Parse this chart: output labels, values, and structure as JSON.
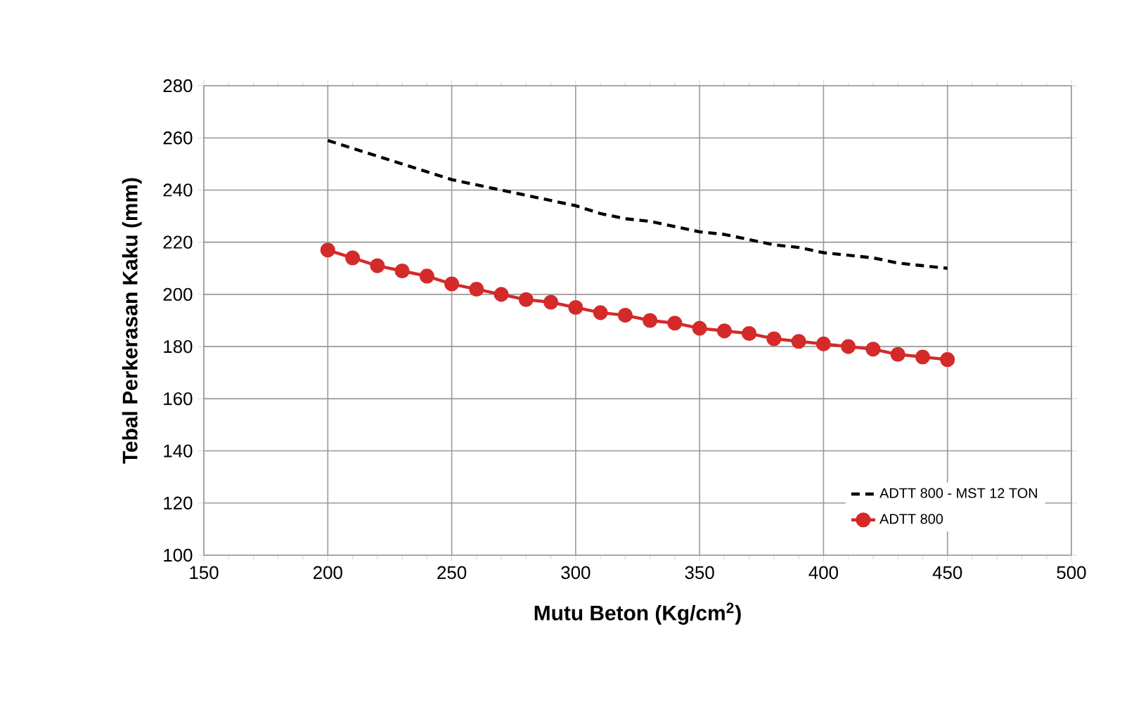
{
  "chart_data": {
    "type": "line",
    "xlabel": "Mutu Beton (Kg/cm$^{2}$)",
    "ylabel": "Tebal Perkerasan Kaku (mm)",
    "xlim": [
      150,
      500
    ],
    "xticks": [
      150,
      200,
      250,
      300,
      350,
      400,
      450,
      500
    ],
    "ylim": [
      100,
      280
    ],
    "yticks": [
      100,
      120,
      140,
      160,
      180,
      200,
      220,
      240,
      260,
      280
    ],
    "grid": true,
    "legend": "bottom right",
    "x": [
      200,
      210,
      220,
      230,
      240,
      250,
      260,
      270,
      280,
      290,
      300,
      310,
      320,
      330,
      340,
      350,
      360,
      370,
      380,
      390,
      400,
      410,
      420,
      430,
      440,
      450
    ],
    "series": [
      {
        "name": "ADTT 800 - MST 12 TON",
        "color": "#000000",
        "line_style": "dashed",
        "marker": "none",
        "values": [
          259,
          256,
          253,
          250,
          247,
          244,
          242,
          240,
          238,
          236,
          234,
          231,
          229,
          228,
          226,
          224,
          223,
          221,
          219,
          218,
          216,
          215,
          214,
          212,
          211,
          210
        ]
      },
      {
        "name": "ADTT 800",
        "color": "#d42a2a",
        "line_style": "solid",
        "marker": "circle",
        "values": [
          217,
          214,
          211,
          209,
          207,
          204,
          202,
          200,
          198,
          197,
          195,
          193,
          192,
          190,
          189,
          187,
          186,
          185,
          183,
          182,
          181,
          180,
          179,
          177,
          176,
          175
        ]
      }
    ]
  }
}
